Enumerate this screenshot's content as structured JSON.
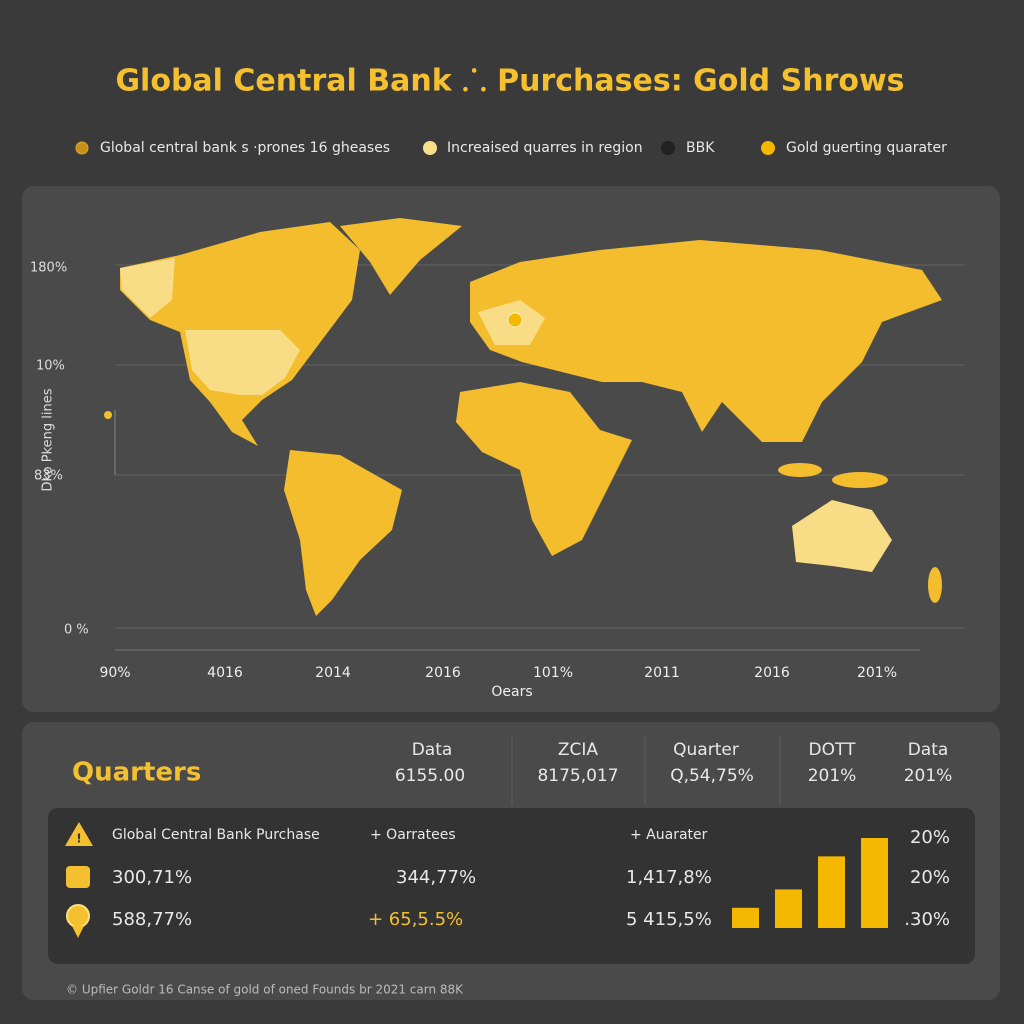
{
  "title": "Global Central Bank ⸫ Purchases: Gold Shrows",
  "legend": [
    {
      "label": "Global central bank s ·prones   16 gheases",
      "color": "#c8901a"
    },
    {
      "label": "Increaised quarres in region",
      "color": "#f8e08a"
    },
    {
      "label": "BBK",
      "color": "#222222"
    },
    {
      "label": "Gold guerting quarater",
      "color": "#f5b800"
    }
  ],
  "map": {
    "y_axis_label": "Dko Pkeng lines",
    "y_labels": [
      "180%",
      "10%",
      "83%",
      "0 %"
    ],
    "x_labels": [
      "90%",
      "4016",
      "2014",
      "2016",
      "101%",
      "2011",
      "2016",
      "201%"
    ],
    "x_axis_label": "Oears"
  },
  "summary": {
    "title": "Quarters",
    "columns": [
      {
        "header": "Data",
        "value": "6155.00"
      },
      {
        "header": "ZCIA",
        "value": "8175,017"
      },
      {
        "header": "Quarter",
        "value": "Q,54,75%"
      },
      {
        "header": "DOTT",
        "value": "201%"
      },
      {
        "header": "Data",
        "value": "201%"
      }
    ]
  },
  "table": {
    "rows": [
      [
        "Global Central Bank Purchase",
        "+ Oarratees",
        "+ Auarater",
        "20%"
      ],
      [
        "300,71%",
        "344,77%",
        "1,417,8%",
        "20%"
      ],
      [
        "588,77%",
        "+ 65,5.5%",
        "5 415,5%",
        ".30%"
      ]
    ]
  },
  "mini_bars": {
    "values": [
      1.1,
      2.1,
      3.9,
      4.9
    ],
    "color": "#f5b800"
  },
  "footer": "© Upfier Goldr 16 Canse of gold of oned Founds br 2021 carn 88K"
}
